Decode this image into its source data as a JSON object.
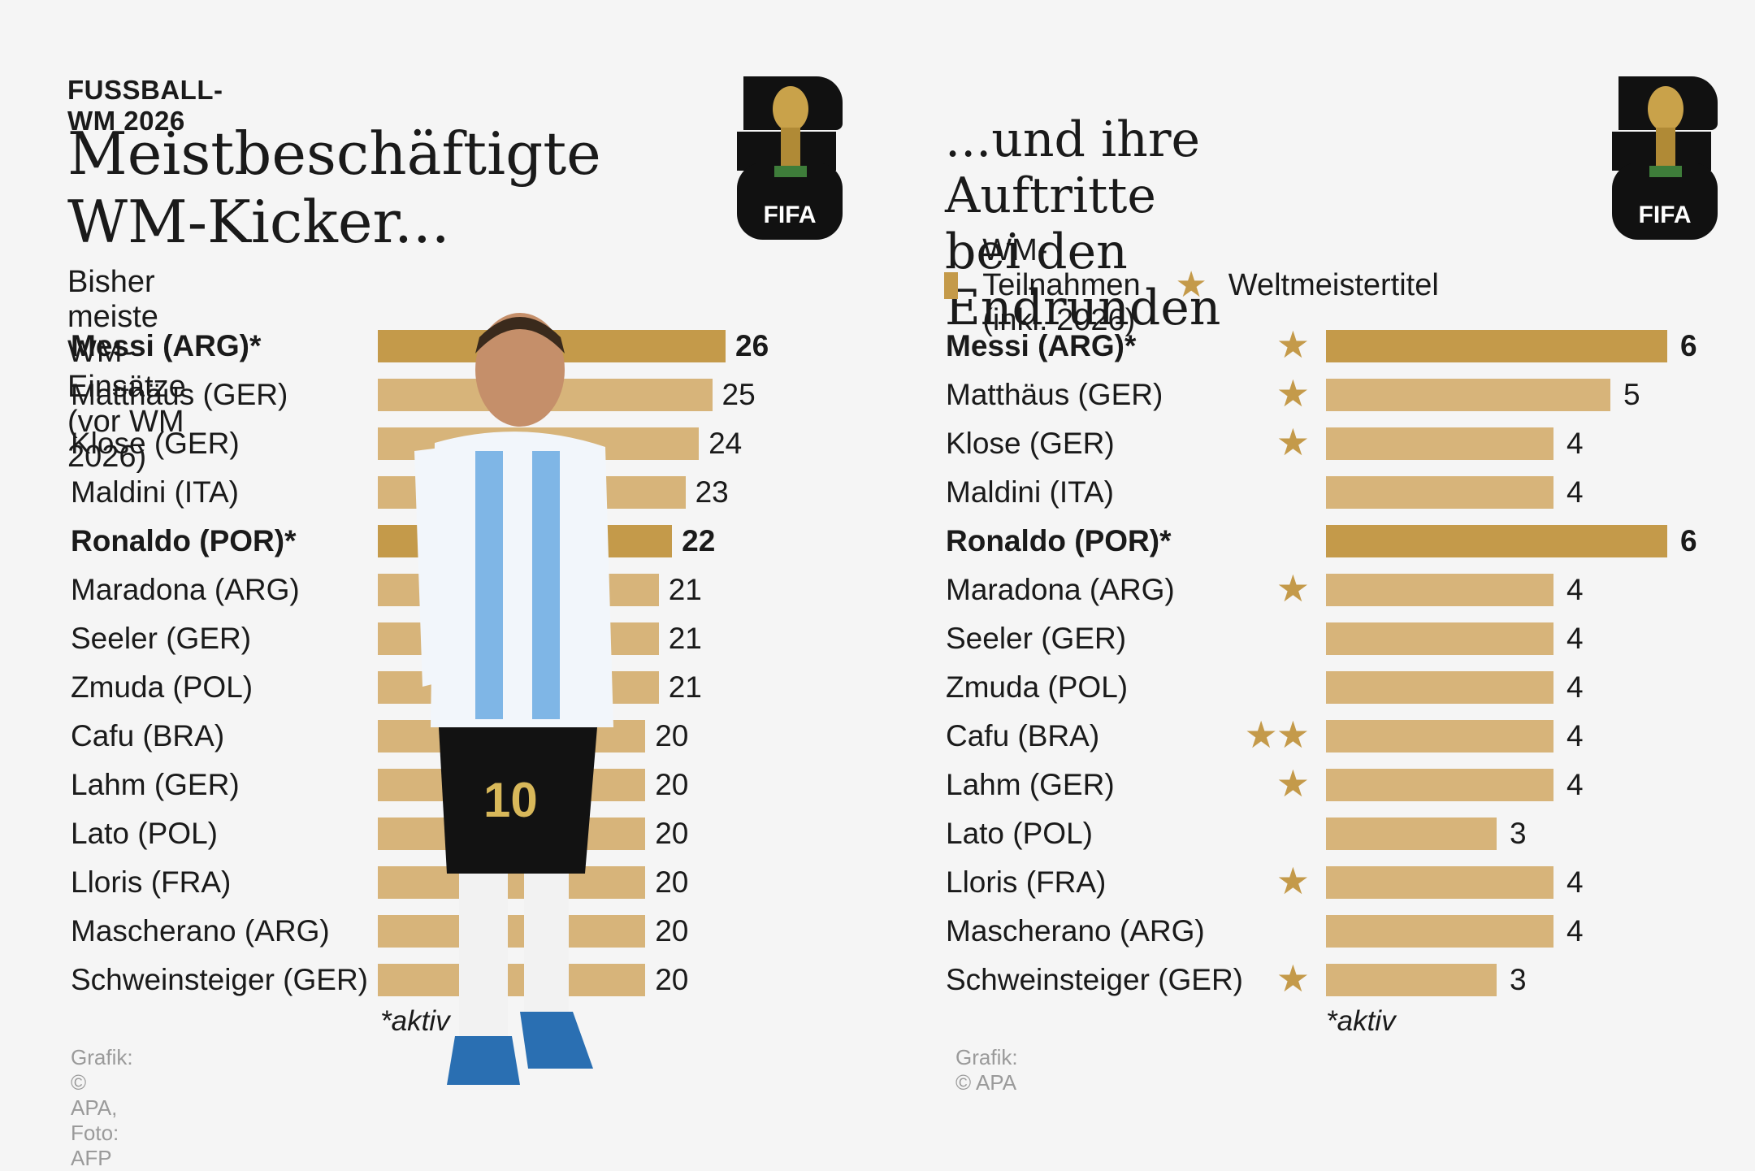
{
  "colors": {
    "active": "#c49a4a",
    "normal": "#d7b47a",
    "source": "#9a9a9a"
  },
  "left": {
    "kicker": "FUSSBALL-WM 2026",
    "title_lines": [
      "Meistbeschäftigte",
      "WM-Kicker..."
    ],
    "subtitle": "Bisher meiste WM-Einsätze (vor WM 2026)",
    "note": "*aktiv",
    "source": "Grafik: © APA, Foto: AFP",
    "logo_text": "FIFA"
  },
  "right": {
    "title_lines": [
      "...und ihre Auftritte",
      "bei den Endrunden"
    ],
    "legend_bar": "WM-Teilnahmen (inkl. 2026)",
    "legend_star": "Weltmeistertitel",
    "note": "*aktiv",
    "source": "Grafik: © APA",
    "logo_text": "FIFA"
  },
  "chart_data": [
    {
      "type": "bar",
      "orientation": "horizontal",
      "title": "Meistbeschäftigte WM-Kicker...",
      "subtitle": "Bisher meiste WM-Einsätze (vor WM 2026)",
      "categories": [
        "Messi (ARG)*",
        "Matthäus (GER)",
        "Klose (GER)",
        "Maldini (ITA)",
        "Ronaldo (POR)*",
        "Maradona (ARG)",
        "Seeler (GER)",
        "Zmuda (POL)",
        "Cafu (BRA)",
        "Lahm (GER)",
        "Lato (POL)",
        "Lloris (FRA)",
        "Mascherano (ARG)",
        "Schweinsteiger (GER)"
      ],
      "values": [
        26,
        25,
        24,
        23,
        22,
        21,
        21,
        21,
        20,
        20,
        20,
        20,
        20,
        20
      ],
      "active": [
        true,
        false,
        false,
        false,
        true,
        false,
        false,
        false,
        false,
        false,
        false,
        false,
        false,
        false
      ],
      "xlim": [
        0,
        26
      ]
    },
    {
      "type": "bar",
      "orientation": "horizontal",
      "title": "...und ihre Auftritte bei den Endrunden",
      "categories": [
        "Messi (ARG)*",
        "Matthäus (GER)",
        "Klose (GER)",
        "Maldini (ITA)",
        "Ronaldo (POR)*",
        "Maradona (ARG)",
        "Seeler (GER)",
        "Zmuda (POL)",
        "Cafu (BRA)",
        "Lahm (GER)",
        "Lato (POL)",
        "Lloris (FRA)",
        "Mascherano (ARG)",
        "Schweinsteiger (GER)"
      ],
      "series": [
        {
          "name": "WM-Teilnahmen (inkl. 2026)",
          "values": [
            6,
            5,
            4,
            4,
            6,
            4,
            4,
            4,
            4,
            4,
            3,
            4,
            4,
            3
          ]
        },
        {
          "name": "Weltmeistertitel",
          "values": [
            1,
            1,
            1,
            0,
            0,
            1,
            0,
            0,
            2,
            1,
            0,
            1,
            0,
            1
          ]
        }
      ],
      "active": [
        true,
        false,
        false,
        false,
        true,
        false,
        false,
        false,
        false,
        false,
        false,
        false,
        false,
        false
      ],
      "xlim": [
        0,
        6
      ]
    }
  ]
}
